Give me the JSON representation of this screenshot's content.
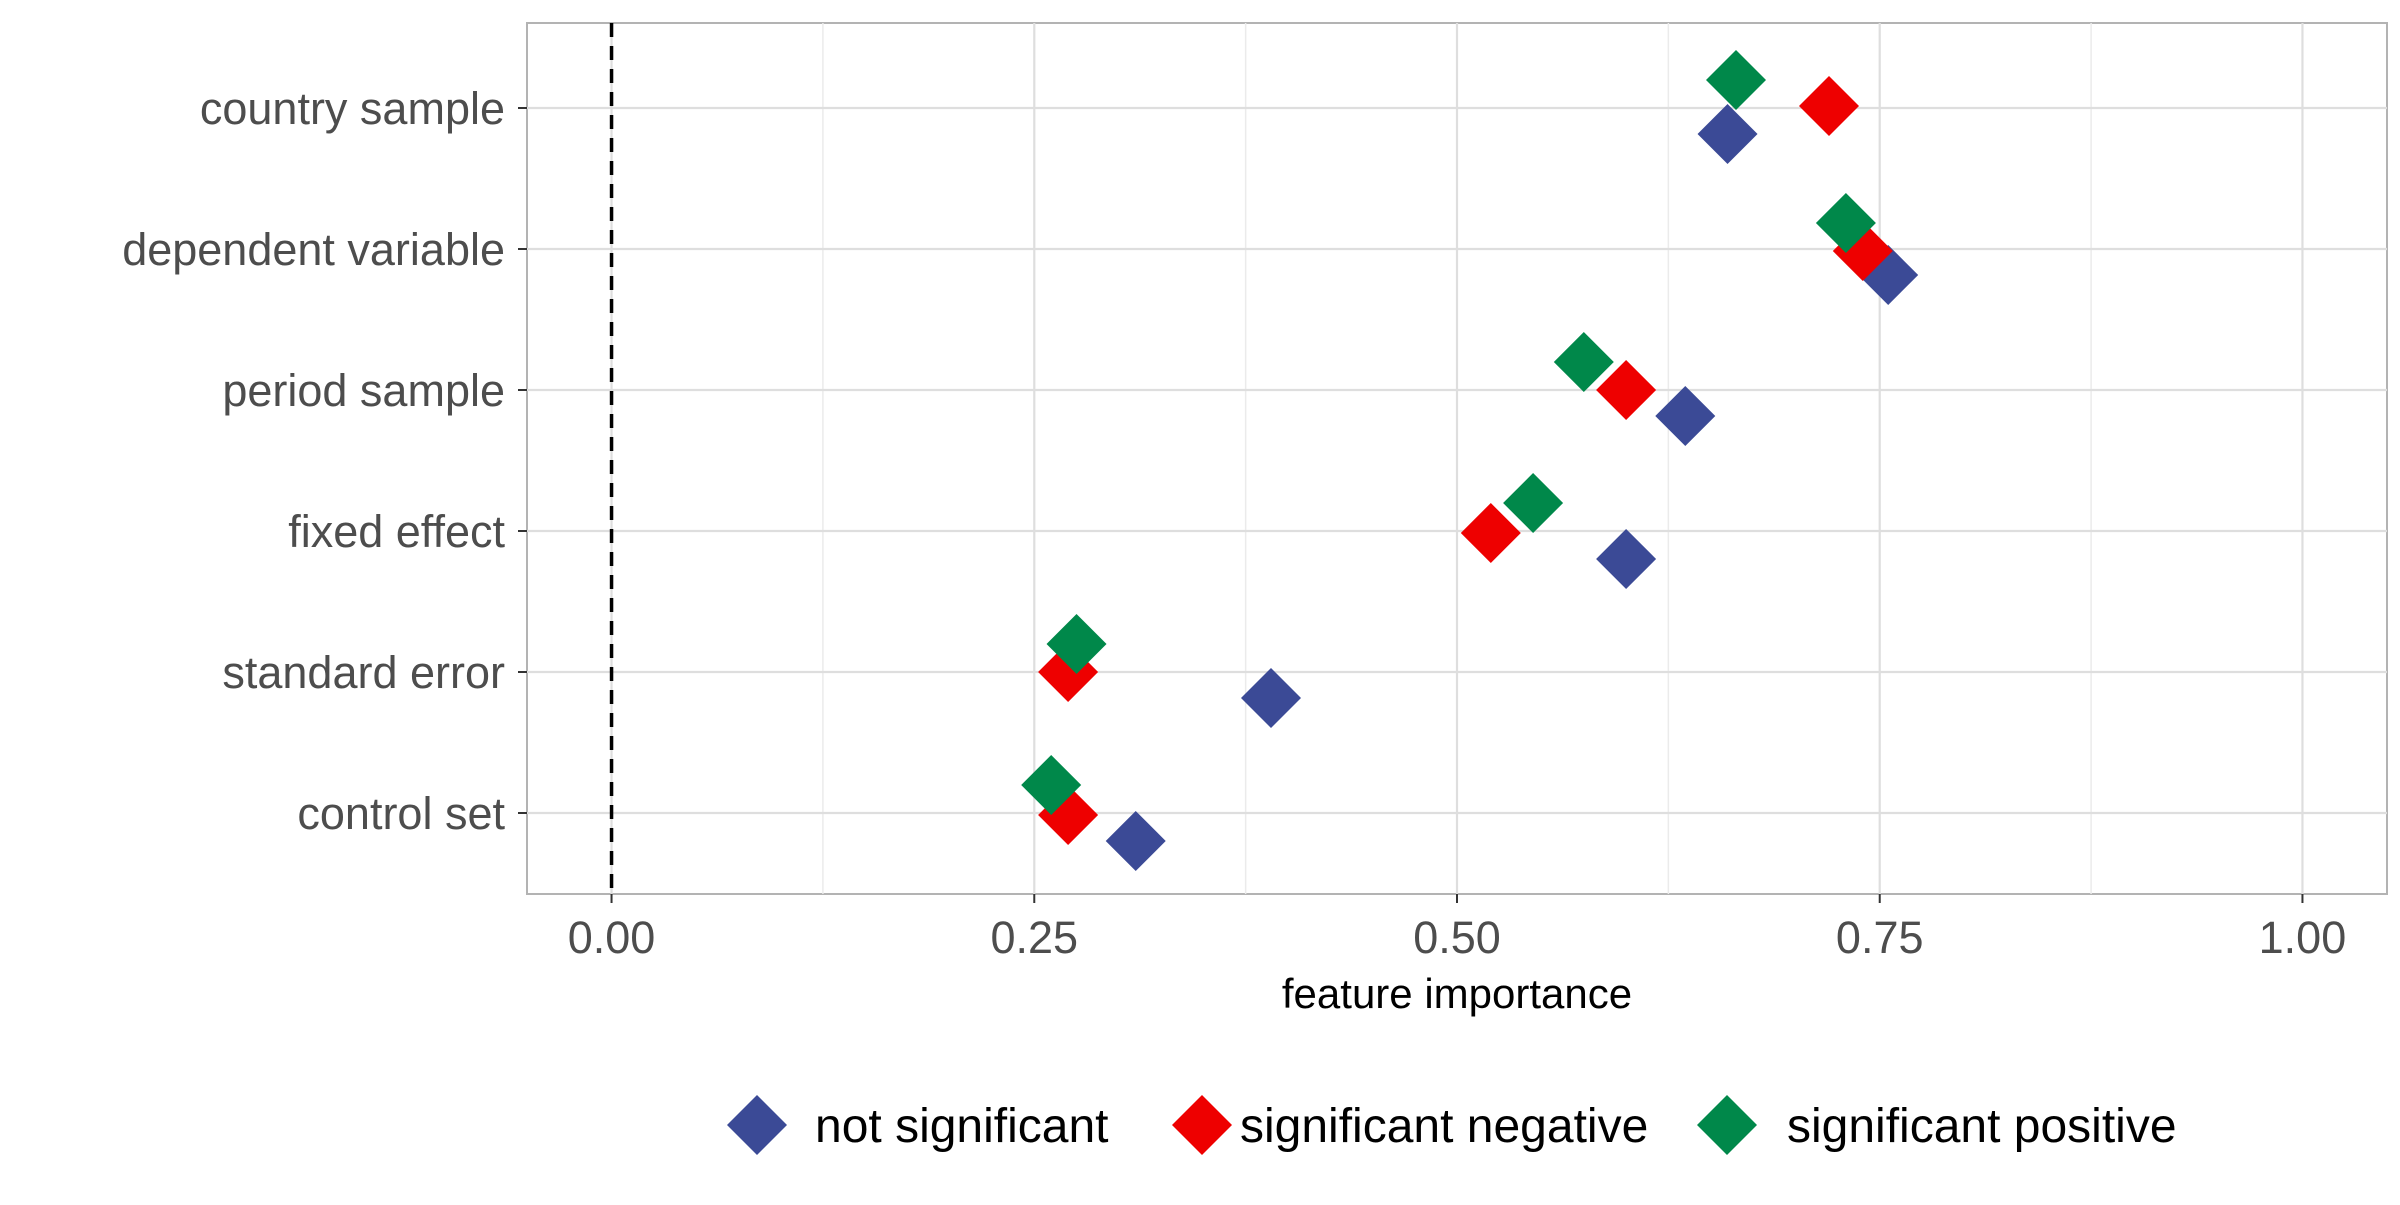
{
  "chart_data": {
    "type": "scatter",
    "title": "",
    "xlabel": "feature importance",
    "ylabel": "",
    "xlim": [
      -0.05,
      1.05
    ],
    "x_ticks": [
      0.0,
      0.25,
      0.5,
      0.75,
      1.0
    ],
    "x_tick_labels": [
      "0.00",
      "0.25",
      "0.50",
      "0.75",
      "1.00"
    ],
    "categories": [
      "country sample",
      "dependent variable",
      "period sample",
      "fixed effect",
      "standard error",
      "control set"
    ],
    "reference_line": {
      "x": 0.0,
      "style": "dashed"
    },
    "grid": true,
    "legend_position": "bottom",
    "marker": "diamond",
    "series": [
      {
        "name": "not significant",
        "color": "#3B4A96",
        "values": [
          0.66,
          0.755,
          0.635,
          0.6,
          0.39,
          0.31
        ]
      },
      {
        "name": "significant negative",
        "color": "#EE0000",
        "values": [
          0.72,
          0.74,
          0.6,
          0.52,
          0.27,
          0.27
        ]
      },
      {
        "name": "significant positive",
        "color": "#00884A",
        "values": [
          0.665,
          0.73,
          0.575,
          0.545,
          0.275,
          0.26
        ]
      }
    ]
  }
}
